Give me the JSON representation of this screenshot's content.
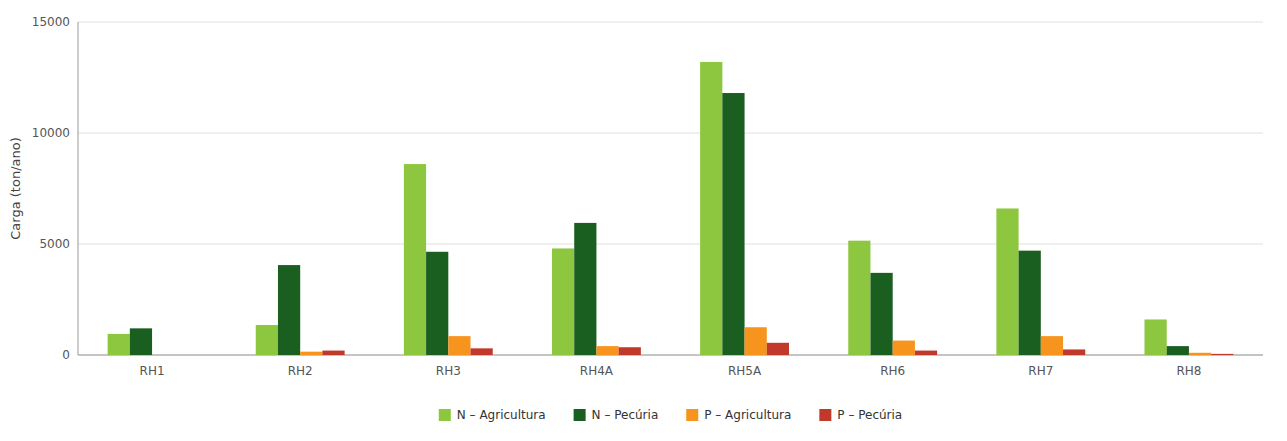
{
  "chart_data": {
    "type": "bar",
    "categories": [
      "RH1",
      "RH2",
      "RH3",
      "RH4A",
      "RH5A",
      "RH6",
      "RH7",
      "RH8"
    ],
    "series": [
      {
        "name": "N – Agricultura",
        "color": "#8DC63F",
        "values": [
          950,
          1350,
          8600,
          4800,
          13200,
          5150,
          6600,
          1600
        ]
      },
      {
        "name": "N – Pecúria",
        "color": "#1A5E20",
        "values": [
          1200,
          4050,
          4650,
          5950,
          11800,
          3700,
          4700,
          400
        ]
      },
      {
        "name": "P – Agricultura",
        "color": "#F7941D",
        "values": [
          0,
          150,
          850,
          400,
          1250,
          650,
          850,
          100
        ]
      },
      {
        "name": "P – Pecúria",
        "color": "#C0392B",
        "values": [
          0,
          200,
          300,
          350,
          550,
          200,
          250,
          50
        ]
      }
    ],
    "y_label": "Carga (ton/ano)",
    "ylim": [
      0,
      15000
    ],
    "yticks": [
      0,
      5000,
      10000,
      15000
    ],
    "grid": true,
    "legend": "bottom"
  }
}
